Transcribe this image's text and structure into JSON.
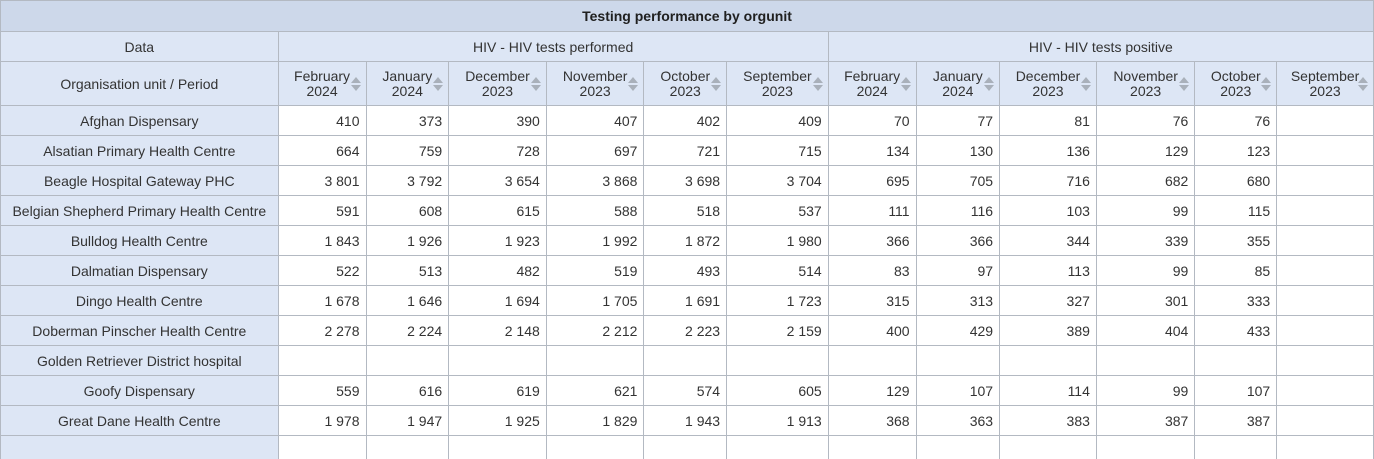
{
  "table": {
    "title": "Testing performance by orgunit",
    "data_header": "Data",
    "ou_header": "Organisation unit / Period",
    "groups": [
      {
        "label": "HIV - HIV tests performed"
      },
      {
        "label": "HIV - HIV tests positive"
      }
    ],
    "periods": [
      "February\n2024",
      "January\n2024",
      "December\n2023",
      "November\n2023",
      "October\n2023",
      "September\n2023",
      "February\n2024",
      "January\n2024",
      "December\n2023",
      "November\n2023",
      "October\n2023",
      "September\n2023"
    ],
    "rows": [
      {
        "ou": "Afghan Dispensary",
        "v": [
          "410",
          "373",
          "390",
          "407",
          "402",
          "409",
          "70",
          "77",
          "81",
          "76",
          "76",
          ""
        ]
      },
      {
        "ou": "Alsatian Primary Health Centre",
        "v": [
          "664",
          "759",
          "728",
          "697",
          "721",
          "715",
          "134",
          "130",
          "136",
          "129",
          "123",
          ""
        ]
      },
      {
        "ou": "Beagle Hospital Gateway PHC",
        "v": [
          "3 801",
          "3 792",
          "3 654",
          "3 868",
          "3 698",
          "3 704",
          "695",
          "705",
          "716",
          "682",
          "680",
          ""
        ]
      },
      {
        "ou": "Belgian Shepherd Primary Health Centre",
        "v": [
          "591",
          "608",
          "615",
          "588",
          "518",
          "537",
          "111",
          "116",
          "103",
          "99",
          "115",
          ""
        ]
      },
      {
        "ou": "Bulldog Health Centre",
        "v": [
          "1 843",
          "1 926",
          "1 923",
          "1 992",
          "1 872",
          "1 980",
          "366",
          "366",
          "344",
          "339",
          "355",
          ""
        ]
      },
      {
        "ou": "Dalmatian Dispensary",
        "v": [
          "522",
          "513",
          "482",
          "519",
          "493",
          "514",
          "83",
          "97",
          "113",
          "99",
          "85",
          ""
        ]
      },
      {
        "ou": "Dingo Health Centre",
        "v": [
          "1 678",
          "1 646",
          "1 694",
          "1 705",
          "1 691",
          "1 723",
          "315",
          "313",
          "327",
          "301",
          "333",
          ""
        ]
      },
      {
        "ou": "Doberman Pinscher Health Centre",
        "v": [
          "2 278",
          "2 224",
          "2 148",
          "2 212",
          "2 223",
          "2 159",
          "400",
          "429",
          "389",
          "404",
          "433",
          ""
        ]
      },
      {
        "ou": "Golden Retriever District hospital",
        "v": [
          "",
          "",
          "",
          "",
          "",
          "",
          "",
          "",
          "",
          "",
          "",
          ""
        ]
      },
      {
        "ou": "Goofy Dispensary",
        "v": [
          "559",
          "616",
          "619",
          "621",
          "574",
          "605",
          "129",
          "107",
          "114",
          "99",
          "107",
          ""
        ]
      },
      {
        "ou": "Great Dane Health Centre",
        "v": [
          "1 978",
          "1 947",
          "1 925",
          "1 829",
          "1 943",
          "1 913",
          "368",
          "363",
          "383",
          "387",
          "387",
          ""
        ]
      },
      {
        "ou": "",
        "v": [
          "",
          "",
          "",
          "",
          "",
          "",
          "",
          "",
          "",
          "",
          "",
          ""
        ]
      }
    ]
  }
}
